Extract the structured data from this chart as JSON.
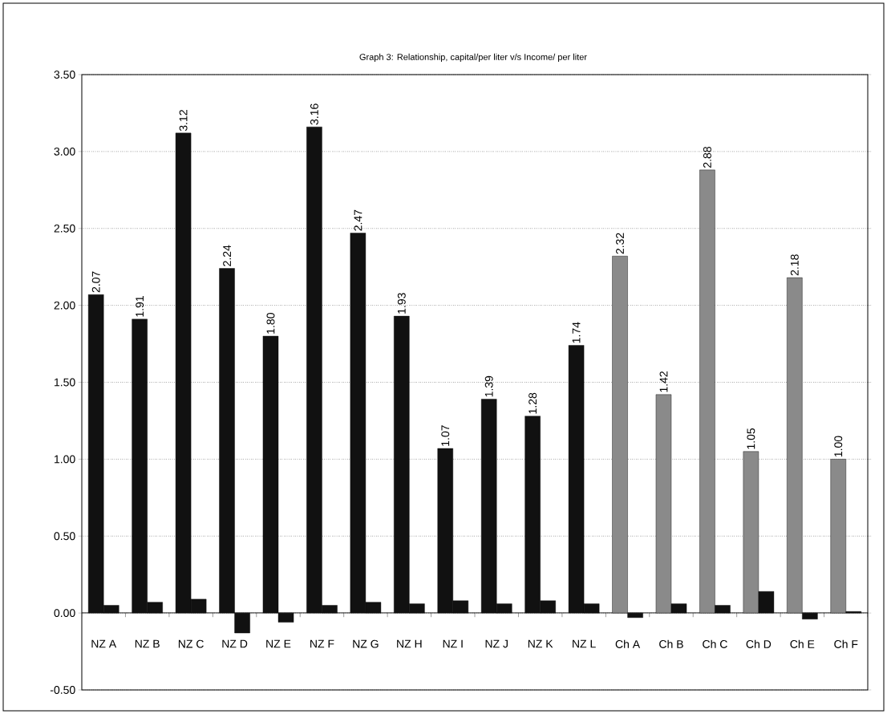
{
  "chart_data": {
    "type": "bar",
    "title": "Graph 3: Relationship, capital/per liter v/s Income/ per liter",
    "categories": [
      "NZ A",
      "NZ B",
      "NZ C",
      "NZ D",
      "NZ E",
      "NZ F",
      "NZ G",
      "NZ H",
      "NZ I",
      "NZ J",
      "NZ K",
      "NZ L",
      "Ch A",
      "Ch B",
      "Ch C",
      "Ch D",
      "Ch E",
      "Ch F"
    ],
    "series": [
      {
        "colors": [
          "#111111",
          "#111111",
          "#111111",
          "#111111",
          "#111111",
          "#111111",
          "#111111",
          "#111111",
          "#111111",
          "#111111",
          "#111111",
          "#111111",
          "#8a8a8a",
          "#8a8a8a",
          "#8a8a8a",
          "#8a8a8a",
          "#8a8a8a",
          "#8a8a8a"
        ],
        "values": [
          2.07,
          1.91,
          3.12,
          2.24,
          1.8,
          3.16,
          2.47,
          1.93,
          1.07,
          1.39,
          1.28,
          1.74,
          2.32,
          1.42,
          2.88,
          1.05,
          2.18,
          1.0
        ],
        "value_labels": [
          "2.07",
          "1.91",
          "3.12",
          "2.24",
          "1.80",
          "3.16",
          "2.47",
          "1.93",
          "1.07",
          "1.39",
          "1.28",
          "1.74",
          "2.32",
          "1.42",
          "2.88",
          "1.05",
          "2.18",
          "1.00"
        ]
      },
      {
        "color": "#111111",
        "values": [
          0.05,
          0.07,
          0.09,
          -0.13,
          -0.06,
          0.05,
          0.07,
          0.06,
          0.08,
          0.06,
          0.08,
          0.06,
          -0.03,
          0.06,
          0.05,
          0.14,
          -0.04,
          0.01
        ]
      }
    ],
    "ylim": [
      -0.5,
      3.5
    ],
    "yticks": [
      {
        "value": -0.5,
        "label": "-0.50"
      },
      {
        "value": 0,
        "label": "0.00"
      },
      {
        "value": 0.5,
        "label": "0.50"
      },
      {
        "value": 1,
        "label": "1.00"
      },
      {
        "value": 1.5,
        "label": "1.50"
      },
      {
        "value": 2,
        "label": "2.00"
      },
      {
        "value": 2.5,
        "label": "2.50"
      },
      {
        "value": 3,
        "label": "3.00"
      },
      {
        "value": 3.5,
        "label": "3.50"
      }
    ],
    "grid": "y"
  }
}
